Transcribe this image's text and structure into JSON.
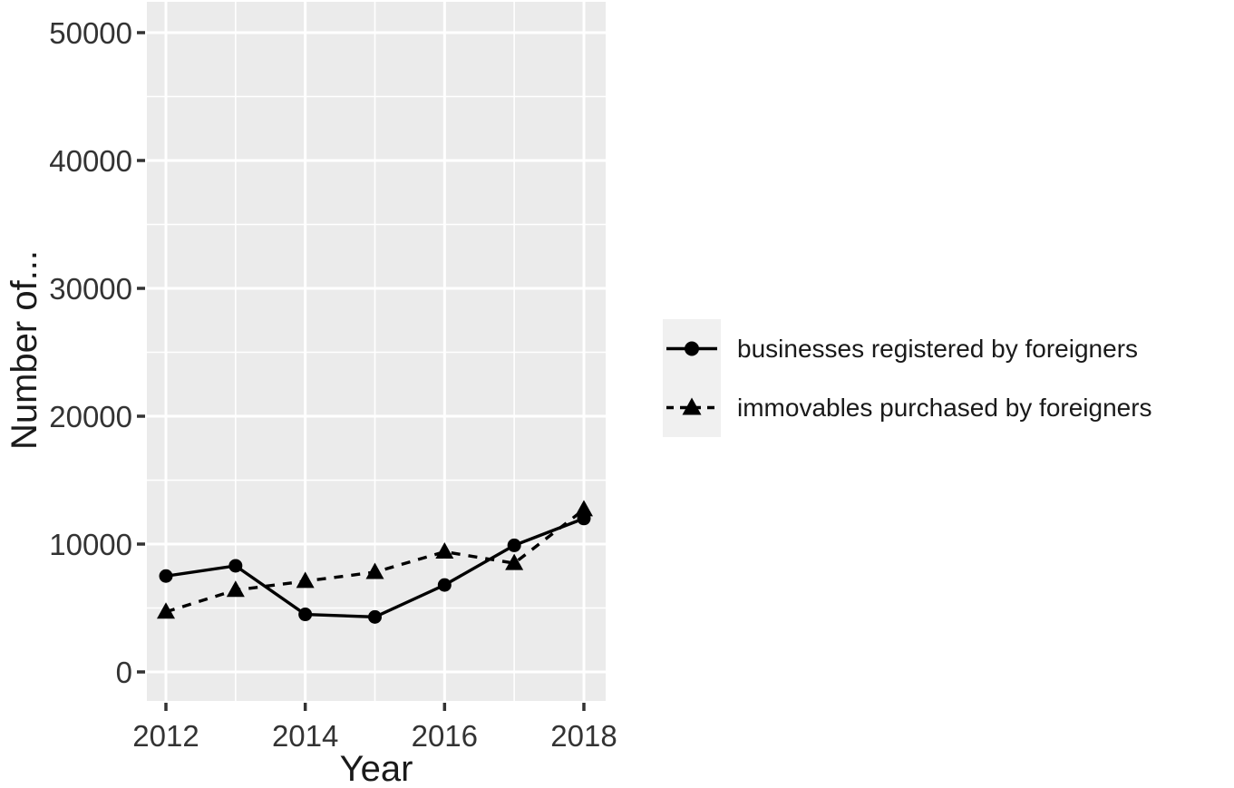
{
  "chart_data": {
    "type": "line",
    "title": "",
    "xlabel": "Year",
    "ylabel": "Number of...",
    "x": [
      2012,
      2013,
      2014,
      2015,
      2016,
      2017,
      2018
    ],
    "series": [
      {
        "name": "businesses registered by foreigners",
        "marker": "circle",
        "line_style": "solid",
        "values": [
          7500,
          8300,
          4500,
          4300,
          6800,
          9900,
          12000
        ]
      },
      {
        "name": "immovables purchased by foreigners",
        "marker": "triangle",
        "line_style": "dashed",
        "values": [
          4700,
          6400,
          7100,
          7800,
          9400,
          8500,
          12700
        ]
      }
    ],
    "xticks": [
      2012,
      2014,
      2016,
      2018
    ],
    "yticks": [
      0,
      10000,
      20000,
      30000,
      40000,
      50000
    ],
    "ylim": [
      0,
      50000
    ],
    "xlim": [
      2012,
      2018
    ],
    "grid": "major+minor",
    "legend_position": "right",
    "colors": {
      "series": "#000000",
      "panel_bg": "#ebebeb",
      "grid": "#ffffff",
      "tick_text": "#333333",
      "tick_mark": "#333333",
      "axis_title_text": "#1a1a1a",
      "legend_key_bg": "#f0f0f0",
      "figure_bg": "#ffffff"
    }
  }
}
